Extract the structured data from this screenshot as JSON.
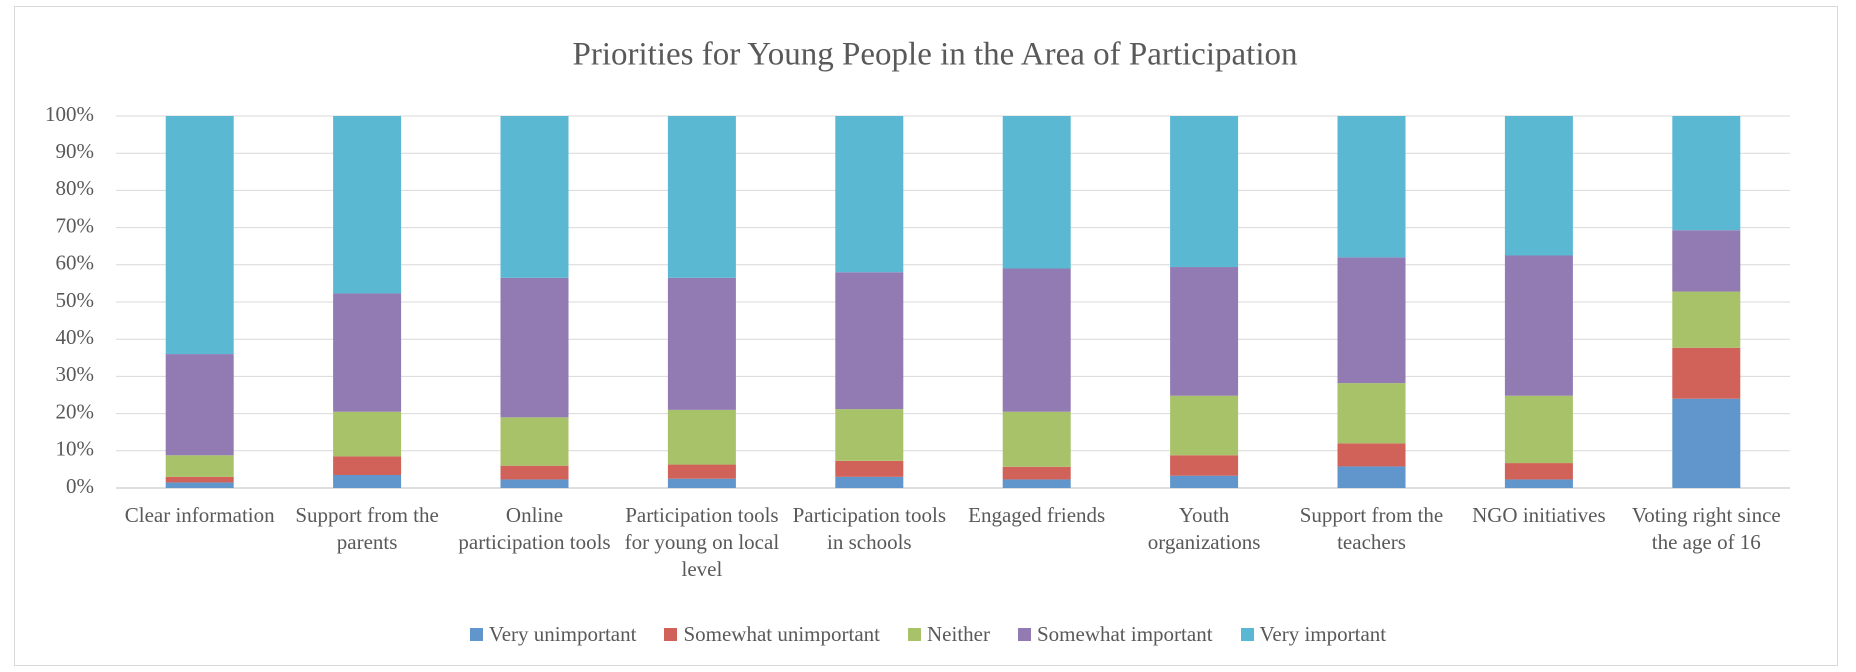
{
  "chart_data": {
    "type": "stacked_bar",
    "title": "Priorities for Young People in the Area of Participation",
    "categories": [
      "Clear information",
      "Support from the parents",
      "Online participation tools",
      "Participation tools for young on local level",
      "Participation tools in schools",
      "Engaged friends",
      "Youth organizations",
      "Support from the teachers",
      "NGO initiatives",
      "Voting right since the age of 16"
    ],
    "series": [
      {
        "name": "Very unimportant",
        "color": "#6096cb",
        "values": [
          1.5,
          3.5,
          2.3,
          2.5,
          3,
          2.3,
          3.3,
          5.8,
          2.3,
          24
        ]
      },
      {
        "name": "Somewhat unimportant",
        "color": "#d0625a",
        "values": [
          1.5,
          5,
          3.7,
          3.8,
          4.3,
          3.4,
          5.5,
          6.2,
          4.4,
          13.7
        ]
      },
      {
        "name": "Neither",
        "color": "#a8c26a",
        "values": [
          5.8,
          12,
          13,
          14.7,
          13.9,
          14.8,
          16,
          16.2,
          18.1,
          15.1
        ]
      },
      {
        "name": "Somewhat important",
        "color": "#927bb3",
        "values": [
          27.2,
          31.8,
          37.5,
          35.5,
          36.8,
          38.5,
          34.6,
          33.8,
          37.7,
          16.5
        ]
      },
      {
        "name": "Very important",
        "color": "#5bb8d2",
        "values": [
          64,
          47.7,
          43.5,
          43.5,
          42,
          41,
          40.6,
          38,
          37.5,
          30.7
        ]
      }
    ],
    "ylim": [
      0,
      100
    ],
    "yticks": [
      {
        "value": 0,
        "label": "0%"
      },
      {
        "value": 10,
        "label": "10%"
      },
      {
        "value": 20,
        "label": "20%"
      },
      {
        "value": 30,
        "label": "30%"
      },
      {
        "value": 40,
        "label": "40%"
      },
      {
        "value": 50,
        "label": "50%"
      },
      {
        "value": 60,
        "label": "60%"
      },
      {
        "value": 70,
        "label": "70%"
      },
      {
        "value": 80,
        "label": "80%"
      },
      {
        "value": 90,
        "label": "90%"
      },
      {
        "value": 100,
        "label": "100%"
      }
    ],
    "grid": true,
    "legend": "bottom"
  }
}
